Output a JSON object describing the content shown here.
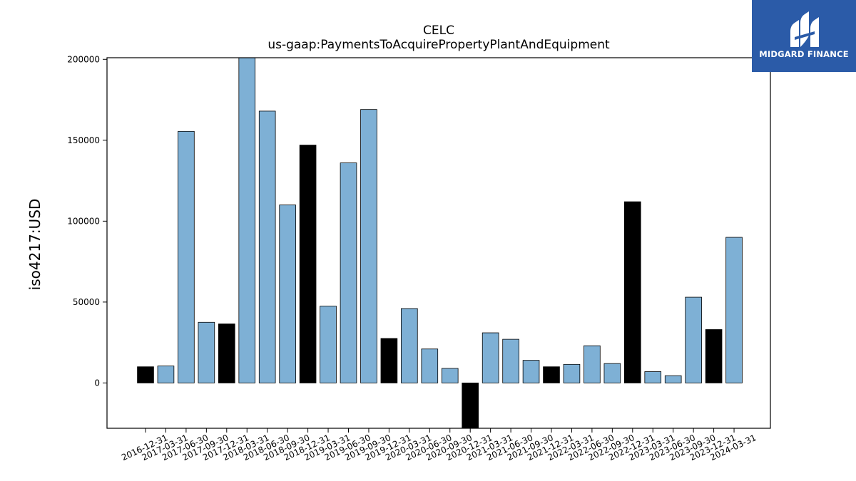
{
  "brand": {
    "name": "MIDGARD FINANCE",
    "bg_color": "#2b5ba8"
  },
  "chart_data": {
    "type": "bar",
    "title": "CELC",
    "subtitle": "us-gaap:PaymentsToAcquirePropertyPlantAndEquipment",
    "xlabel": "",
    "ylabel": "iso4217:USD",
    "ylim": [
      -28000,
      201000
    ],
    "yticks": [
      0,
      50000,
      100000,
      150000,
      200000
    ],
    "grid": false,
    "colors": {
      "quarterly": "#7eb0d5",
      "annual": "#000000",
      "edge": "#000000"
    },
    "categories": [
      "2016-12-31",
      "2017-03-31",
      "2017-06-30",
      "2017-09-30",
      "2017-12-31",
      "2018-03-31",
      "2018-06-30",
      "2018-09-30",
      "2018-12-31",
      "2019-03-31",
      "2019-06-30",
      "2019-09-30",
      "2019-12-31",
      "2020-03-31",
      "2020-06-30",
      "2020-09-30",
      "2020-12-31",
      "2021-03-31",
      "2021-06-30",
      "2021-09-30",
      "2021-12-31",
      "2022-03-31",
      "2022-06-30",
      "2022-09-30",
      "2022-12-31",
      "2023-03-31",
      "2023-06-30",
      "2023-09-30",
      "2023-12-31",
      "2024-03-31"
    ],
    "values": [
      10000,
      10500,
      155500,
      37500,
      36500,
      201000,
      168000,
      110000,
      147000,
      47500,
      136000,
      169000,
      27500,
      46000,
      21000,
      9000,
      -28000,
      31000,
      27000,
      14000,
      10000,
      11500,
      23000,
      12000,
      112000,
      7000,
      4500,
      53000,
      33000,
      90000
    ],
    "kinds": [
      "annual",
      "quarterly",
      "quarterly",
      "quarterly",
      "annual",
      "quarterly",
      "quarterly",
      "quarterly",
      "annual",
      "quarterly",
      "quarterly",
      "quarterly",
      "annual",
      "quarterly",
      "quarterly",
      "quarterly",
      "annual",
      "quarterly",
      "quarterly",
      "quarterly",
      "annual",
      "quarterly",
      "quarterly",
      "quarterly",
      "annual",
      "quarterly",
      "quarterly",
      "quarterly",
      "annual",
      "quarterly"
    ]
  }
}
